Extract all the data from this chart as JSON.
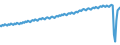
{
  "values": [
    28,
    27,
    29,
    28,
    30,
    29,
    28,
    30,
    29,
    31,
    30,
    29,
    31,
    30,
    32,
    31,
    30,
    32,
    31,
    33,
    32,
    34,
    33,
    35,
    34,
    33,
    35,
    36,
    35,
    37,
    36,
    35,
    37,
    38,
    37,
    39,
    38,
    37,
    39,
    40,
    39,
    38,
    40,
    41,
    40,
    39,
    41,
    42,
    41,
    43,
    42,
    44,
    43,
    45,
    44,
    43,
    45,
    46,
    45,
    47,
    46,
    45,
    47,
    48,
    47,
    49,
    50,
    49,
    51,
    52,
    51,
    50,
    52,
    53,
    52,
    51,
    53,
    54,
    53,
    55,
    54,
    53,
    55,
    56,
    55,
    57,
    56,
    55,
    57,
    56,
    55,
    57,
    58,
    57,
    15,
    5,
    35,
    50,
    52,
    54
  ],
  "line_color": "#4a9fd4",
  "background_color": "#ffffff",
  "linewidth": 1.5
}
